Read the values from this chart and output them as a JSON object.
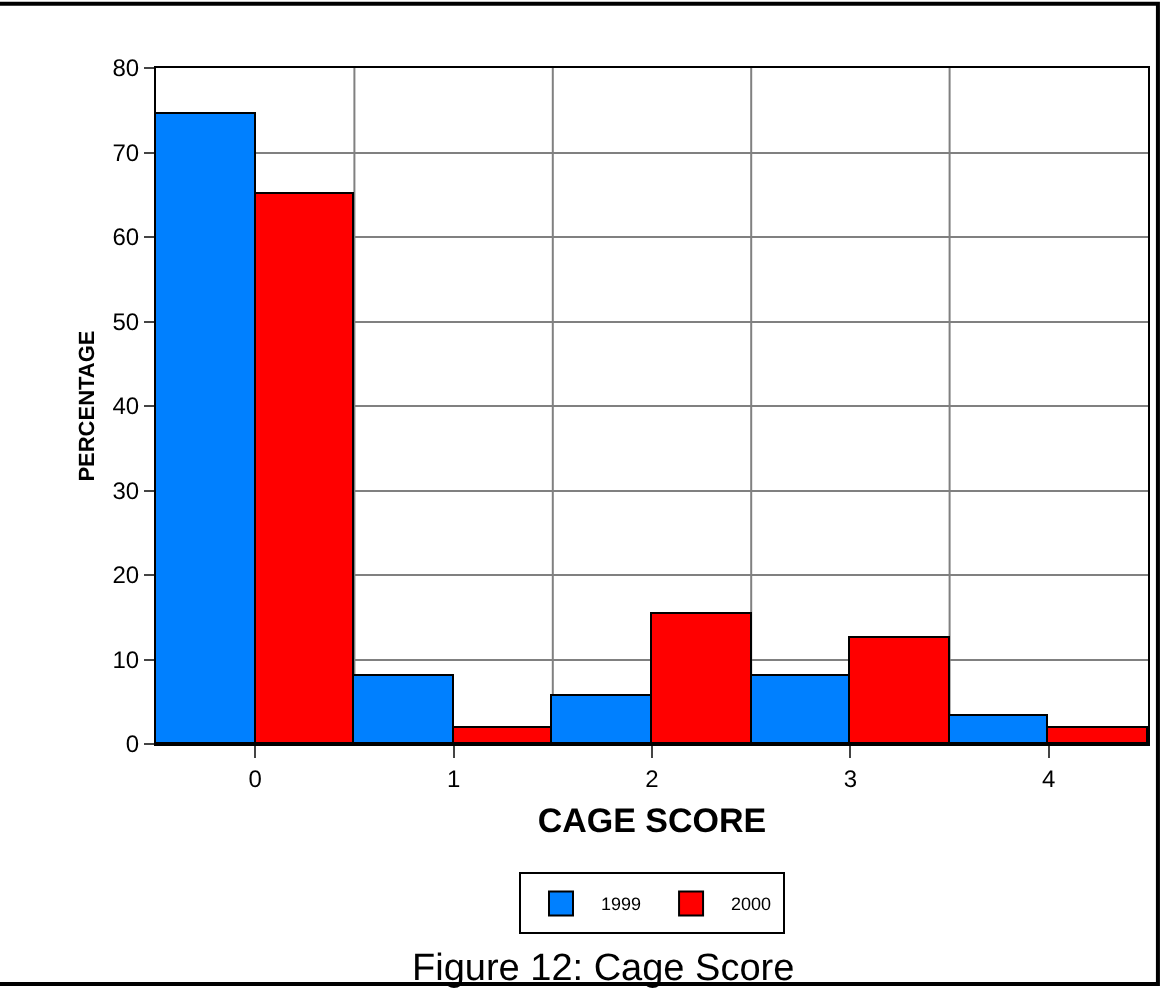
{
  "chart_data": {
    "type": "bar",
    "title": "Figure 12: Cage Score",
    "xlabel": "CAGE SCORE",
    "ylabel": "PERCENTAGE",
    "categories": [
      "0",
      "1",
      "2",
      "3",
      "4"
    ],
    "series": [
      {
        "name": "1999",
        "color": "#0080ff",
        "values": [
          74.5,
          8.1,
          5.8,
          8.1,
          3.4
        ]
      },
      {
        "name": "2000",
        "color": "#ff0000",
        "values": [
          65,
          1.9,
          15.5,
          12.6,
          1.9
        ]
      }
    ],
    "ylim": [
      0,
      80
    ],
    "yticks": [
      0,
      10,
      20,
      30,
      40,
      50,
      60,
      70,
      80
    ],
    "grid": true,
    "legend": "bottom"
  }
}
